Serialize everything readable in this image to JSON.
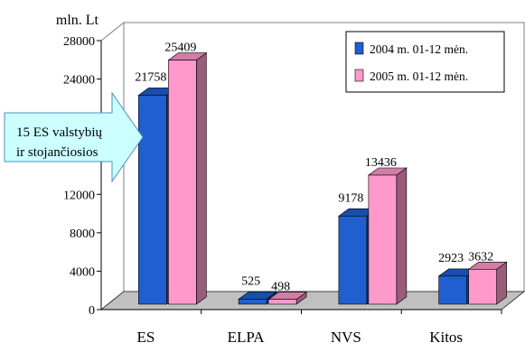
{
  "chart_data": {
    "type": "bar",
    "ylabel": "mln. Lt",
    "ylim": [
      0,
      28000
    ],
    "yticks": [
      0,
      4000,
      8000,
      12000,
      16000,
      20000,
      24000,
      28000
    ],
    "categories": [
      "ES",
      "ELPA",
      "NVS",
      "Kitos"
    ],
    "series": [
      {
        "name": "2004 m. 01-12 mėn.",
        "values": [
          21758,
          525,
          9178,
          2923
        ],
        "color": "#1f5fcf"
      },
      {
        "name": "2005 m. 01-12 mėn.",
        "values": [
          25409,
          498,
          13436,
          3632
        ],
        "color": "#ff99cc"
      }
    ],
    "legend": {
      "placement": "top-right"
    },
    "grid": false,
    "style": "3d",
    "annotation": {
      "lines": [
        "15 ES valstybių",
        "ir stojančiosios"
      ],
      "shape": "arrow",
      "color": "#ccffff"
    }
  }
}
